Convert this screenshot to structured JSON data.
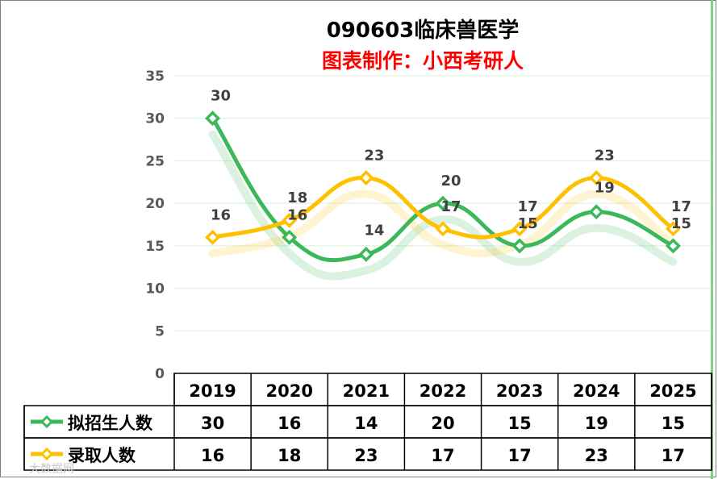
{
  "chart_data": {
    "type": "line",
    "title": "090603临床兽医学",
    "subtitle": "图表制作：小西考研人",
    "categories": [
      "2019",
      "2020",
      "2021",
      "2022",
      "2023",
      "2024",
      "2025"
    ],
    "ylim": [
      0,
      35
    ],
    "yticks": [
      "0",
      "5",
      "10",
      "15",
      "20",
      "25",
      "30",
      "35"
    ],
    "grid": true,
    "legend": "data-table-left",
    "series": [
      {
        "name": "拟招生人数",
        "color": "#3cb85a",
        "values": [
          30,
          16,
          14,
          20,
          15,
          19,
          15
        ]
      },
      {
        "name": "录取人数",
        "color": "#ffc000",
        "values": [
          16,
          18,
          23,
          17,
          17,
          23,
          17
        ]
      }
    ]
  },
  "colors": {
    "title": "#000000",
    "subtitle": "#ff0000",
    "grid": "#d8efd8",
    "axis_text": "#595959"
  },
  "watermark": "大数据网"
}
